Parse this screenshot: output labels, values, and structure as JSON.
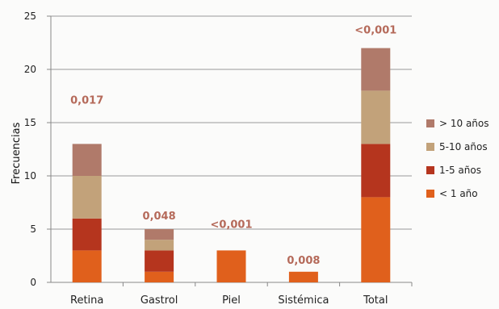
{
  "chart_data": {
    "type": "bar",
    "stacked": true,
    "categories": [
      "Retina",
      "Gastrol",
      "Piel",
      "Sistémica",
      "Total"
    ],
    "series": [
      {
        "name": "< 1 año",
        "color": "#e0601c",
        "values": [
          3,
          1,
          3,
          1,
          8
        ]
      },
      {
        "name": "1-5 años",
        "color": "#b5351e",
        "values": [
          3,
          2,
          0,
          0,
          5
        ]
      },
      {
        "name": "5-10 años",
        "color": "#c2a27a",
        "values": [
          4,
          1,
          0,
          0,
          5
        ]
      },
      {
        "name": "> 10 años",
        "color": "#b07a6a",
        "values": [
          3,
          1,
          0,
          0,
          4
        ]
      }
    ],
    "annotations": [
      "0,017",
      "0,048",
      "<0,001",
      "0,008",
      "<0,001"
    ],
    "xlabel": "",
    "ylabel": "Frecuencias",
    "ylim": [
      0,
      25
    ],
    "yticks": [
      0,
      5,
      10,
      15,
      20,
      25
    ],
    "grid": true,
    "legend_position": "right"
  }
}
